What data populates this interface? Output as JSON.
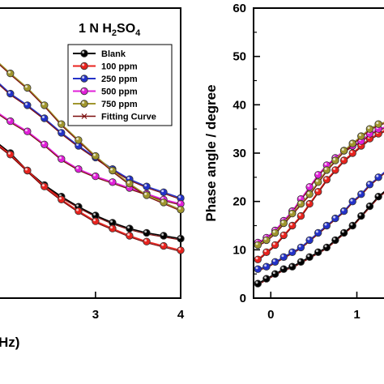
{
  "chart_data": [
    {
      "type": "line",
      "title": "",
      "annotation_parts": [
        "1 N H",
        "2",
        "SO",
        "4"
      ],
      "xlabel": "Hz)",
      "ylabel": "",
      "x_ticks": [
        3,
        4
      ],
      "xlim": [
        1.85,
        4
      ],
      "ylim": [
        0,
        1
      ],
      "legend": {
        "placement": "top-right",
        "entries": [
          "Blank",
          "100 ppm",
          "250 ppm",
          "500 ppm",
          "750 ppm",
          "Fitting Curve"
        ]
      },
      "series": [
        {
          "name": "Blank",
          "color": "#000000",
          "x": [
            1.85,
            2.0,
            2.2,
            2.4,
            2.6,
            2.8,
            3.0,
            3.2,
            3.4,
            3.6,
            3.8,
            4.0
          ],
          "y": [
            0.535,
            0.5,
            0.44,
            0.39,
            0.35,
            0.315,
            0.285,
            0.26,
            0.24,
            0.225,
            0.215,
            0.205
          ]
        },
        {
          "name": "100 ppm",
          "color": "#e8231e",
          "x": [
            1.85,
            2.0,
            2.2,
            2.4,
            2.6,
            2.8,
            3.0,
            3.2,
            3.4,
            3.6,
            3.8,
            4.0
          ],
          "y": [
            0.53,
            0.495,
            0.44,
            0.385,
            0.34,
            0.3,
            0.265,
            0.24,
            0.215,
            0.195,
            0.18,
            0.165
          ]
        },
        {
          "name": "250 ppm",
          "color": "#2432c8",
          "x": [
            1.85,
            2.0,
            2.2,
            2.4,
            2.6,
            2.8,
            3.0,
            3.2,
            3.4,
            3.6,
            3.8,
            4.0
          ],
          "y": [
            0.745,
            0.705,
            0.665,
            0.62,
            0.57,
            0.525,
            0.485,
            0.445,
            0.41,
            0.385,
            0.365,
            0.345
          ]
        },
        {
          "name": "500 ppm",
          "color": "#e020d8",
          "x": [
            1.85,
            2.0,
            2.2,
            2.4,
            2.6,
            2.8,
            3.0,
            3.2,
            3.4,
            3.6,
            3.8,
            4.0
          ],
          "y": [
            0.64,
            0.61,
            0.575,
            0.53,
            0.48,
            0.445,
            0.42,
            0.4,
            0.38,
            0.36,
            0.34,
            0.325
          ]
        },
        {
          "name": "750 ppm",
          "color": "#a0962e",
          "x": [
            1.85,
            2.0,
            2.2,
            2.4,
            2.6,
            2.8,
            3.0,
            3.2,
            3.4,
            3.6,
            3.8,
            4.0
          ],
          "y": [
            0.815,
            0.775,
            0.725,
            0.665,
            0.6,
            0.545,
            0.49,
            0.44,
            0.395,
            0.355,
            0.33,
            0.305
          ]
        }
      ]
    },
    {
      "type": "line",
      "title": "",
      "xlabel": "",
      "ylabel": "Phase angle / degree",
      "x_ticks": [
        0,
        1
      ],
      "y_ticks": [
        0,
        10,
        20,
        30,
        40,
        50,
        60
      ],
      "xlim": [
        -0.2,
        1.4
      ],
      "ylim": [
        0,
        60
      ],
      "series": [
        {
          "name": "Blank",
          "color": "#000000",
          "x": [
            -0.15,
            -0.05,
            0.05,
            0.15,
            0.25,
            0.35,
            0.45,
            0.55,
            0.65,
            0.75,
            0.85,
            0.95,
            1.05,
            1.15,
            1.25,
            1.35,
            1.4
          ],
          "y": [
            3,
            4,
            5,
            6,
            6.5,
            7.5,
            8.5,
            9.5,
            10.5,
            12,
            13.5,
            15,
            17,
            19,
            21,
            22.5,
            23.5
          ]
        },
        {
          "name": "100 ppm",
          "color": "#e8231e",
          "x": [
            -0.15,
            -0.05,
            0.05,
            0.15,
            0.25,
            0.35,
            0.45,
            0.55,
            0.65,
            0.75,
            0.85,
            0.95,
            1.05,
            1.15,
            1.25,
            1.35,
            1.4
          ],
          "y": [
            8,
            9.5,
            11,
            13,
            15,
            17,
            19.5,
            22,
            24.5,
            26.5,
            28.5,
            30,
            31.5,
            33,
            34,
            35,
            35.5
          ]
        },
        {
          "name": "250 ppm",
          "color": "#2432c8",
          "x": [
            -0.15,
            -0.05,
            0.05,
            0.15,
            0.25,
            0.35,
            0.45,
            0.55,
            0.65,
            0.75,
            0.85,
            0.95,
            1.05,
            1.15,
            1.25,
            1.35,
            1.4
          ],
          "y": [
            6,
            6.5,
            7.5,
            8.5,
            9.5,
            10.5,
            12,
            13.5,
            15,
            16.5,
            18,
            20,
            21.5,
            23.5,
            25,
            26.5,
            27.5
          ]
        },
        {
          "name": "500 ppm",
          "color": "#e020d8",
          "x": [
            -0.15,
            -0.05,
            0.05,
            0.15,
            0.25,
            0.35,
            0.45,
            0.55,
            0.65,
            0.75,
            0.85,
            0.95,
            1.05,
            1.15,
            1.25,
            1.35,
            1.4
          ],
          "y": [
            11.5,
            12.5,
            14,
            16,
            18,
            20.5,
            23,
            25.5,
            27.5,
            29,
            30.5,
            31.5,
            32.5,
            34,
            35,
            35.5,
            36
          ]
        },
        {
          "name": "750 ppm",
          "color": "#a0962e",
          "x": [
            -0.15,
            -0.05,
            0.05,
            0.15,
            0.25,
            0.35,
            0.45,
            0.55,
            0.65,
            0.75,
            0.85,
            0.95,
            1.05,
            1.15,
            1.25,
            1.35,
            1.4
          ],
          "y": [
            11,
            12,
            13.5,
            15.5,
            17.5,
            19.5,
            21.5,
            24,
            26.5,
            28.5,
            30.5,
            32,
            33.5,
            35,
            36,
            36.5,
            37
          ]
        }
      ]
    }
  ]
}
